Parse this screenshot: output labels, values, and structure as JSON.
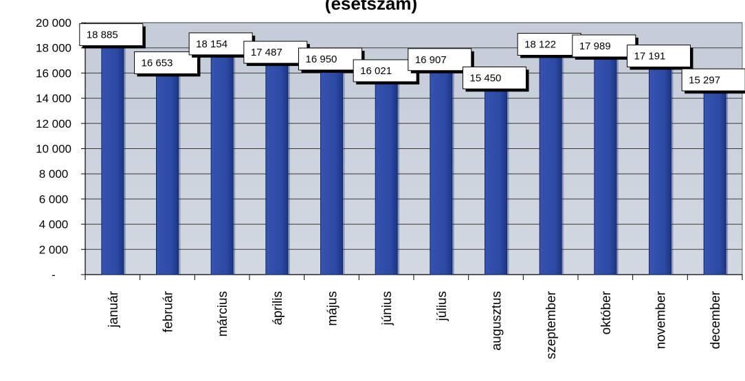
{
  "chart_data": {
    "type": "bar",
    "title": "(esetszám)",
    "categories": [
      "január",
      "február",
      "március",
      "április",
      "május",
      "június",
      "július",
      "augusztus",
      "szeptember",
      "október",
      "november",
      "december"
    ],
    "values": [
      18885,
      16653,
      18154,
      17487,
      16950,
      16021,
      16907,
      15450,
      18122,
      17989,
      17191,
      15297
    ],
    "data_labels": [
      "18 885",
      "16 653",
      "18 154",
      "17 487",
      "16 950",
      "16 021",
      "16 907",
      "15 450",
      "18 122",
      "17 989",
      "17 191",
      "15 297"
    ],
    "ylim": [
      0,
      20000
    ],
    "yticks": [
      0,
      2000,
      4000,
      6000,
      8000,
      10000,
      12000,
      14000,
      16000,
      18000,
      20000
    ],
    "ytick_labels": [
      "-",
      "2 000",
      "4 000",
      "6 000",
      "8 000",
      "10 000",
      "12 000",
      "14 000",
      "16 000",
      "18 000",
      "20 000"
    ],
    "xlabel": "",
    "ylabel": "",
    "grid": true,
    "legend": "none",
    "colors": {
      "bar": "#2b4aa3",
      "bar_shade": "#14276a",
      "plot_background": "#c9d1dc",
      "gridline": "#3a3a3a"
    }
  }
}
